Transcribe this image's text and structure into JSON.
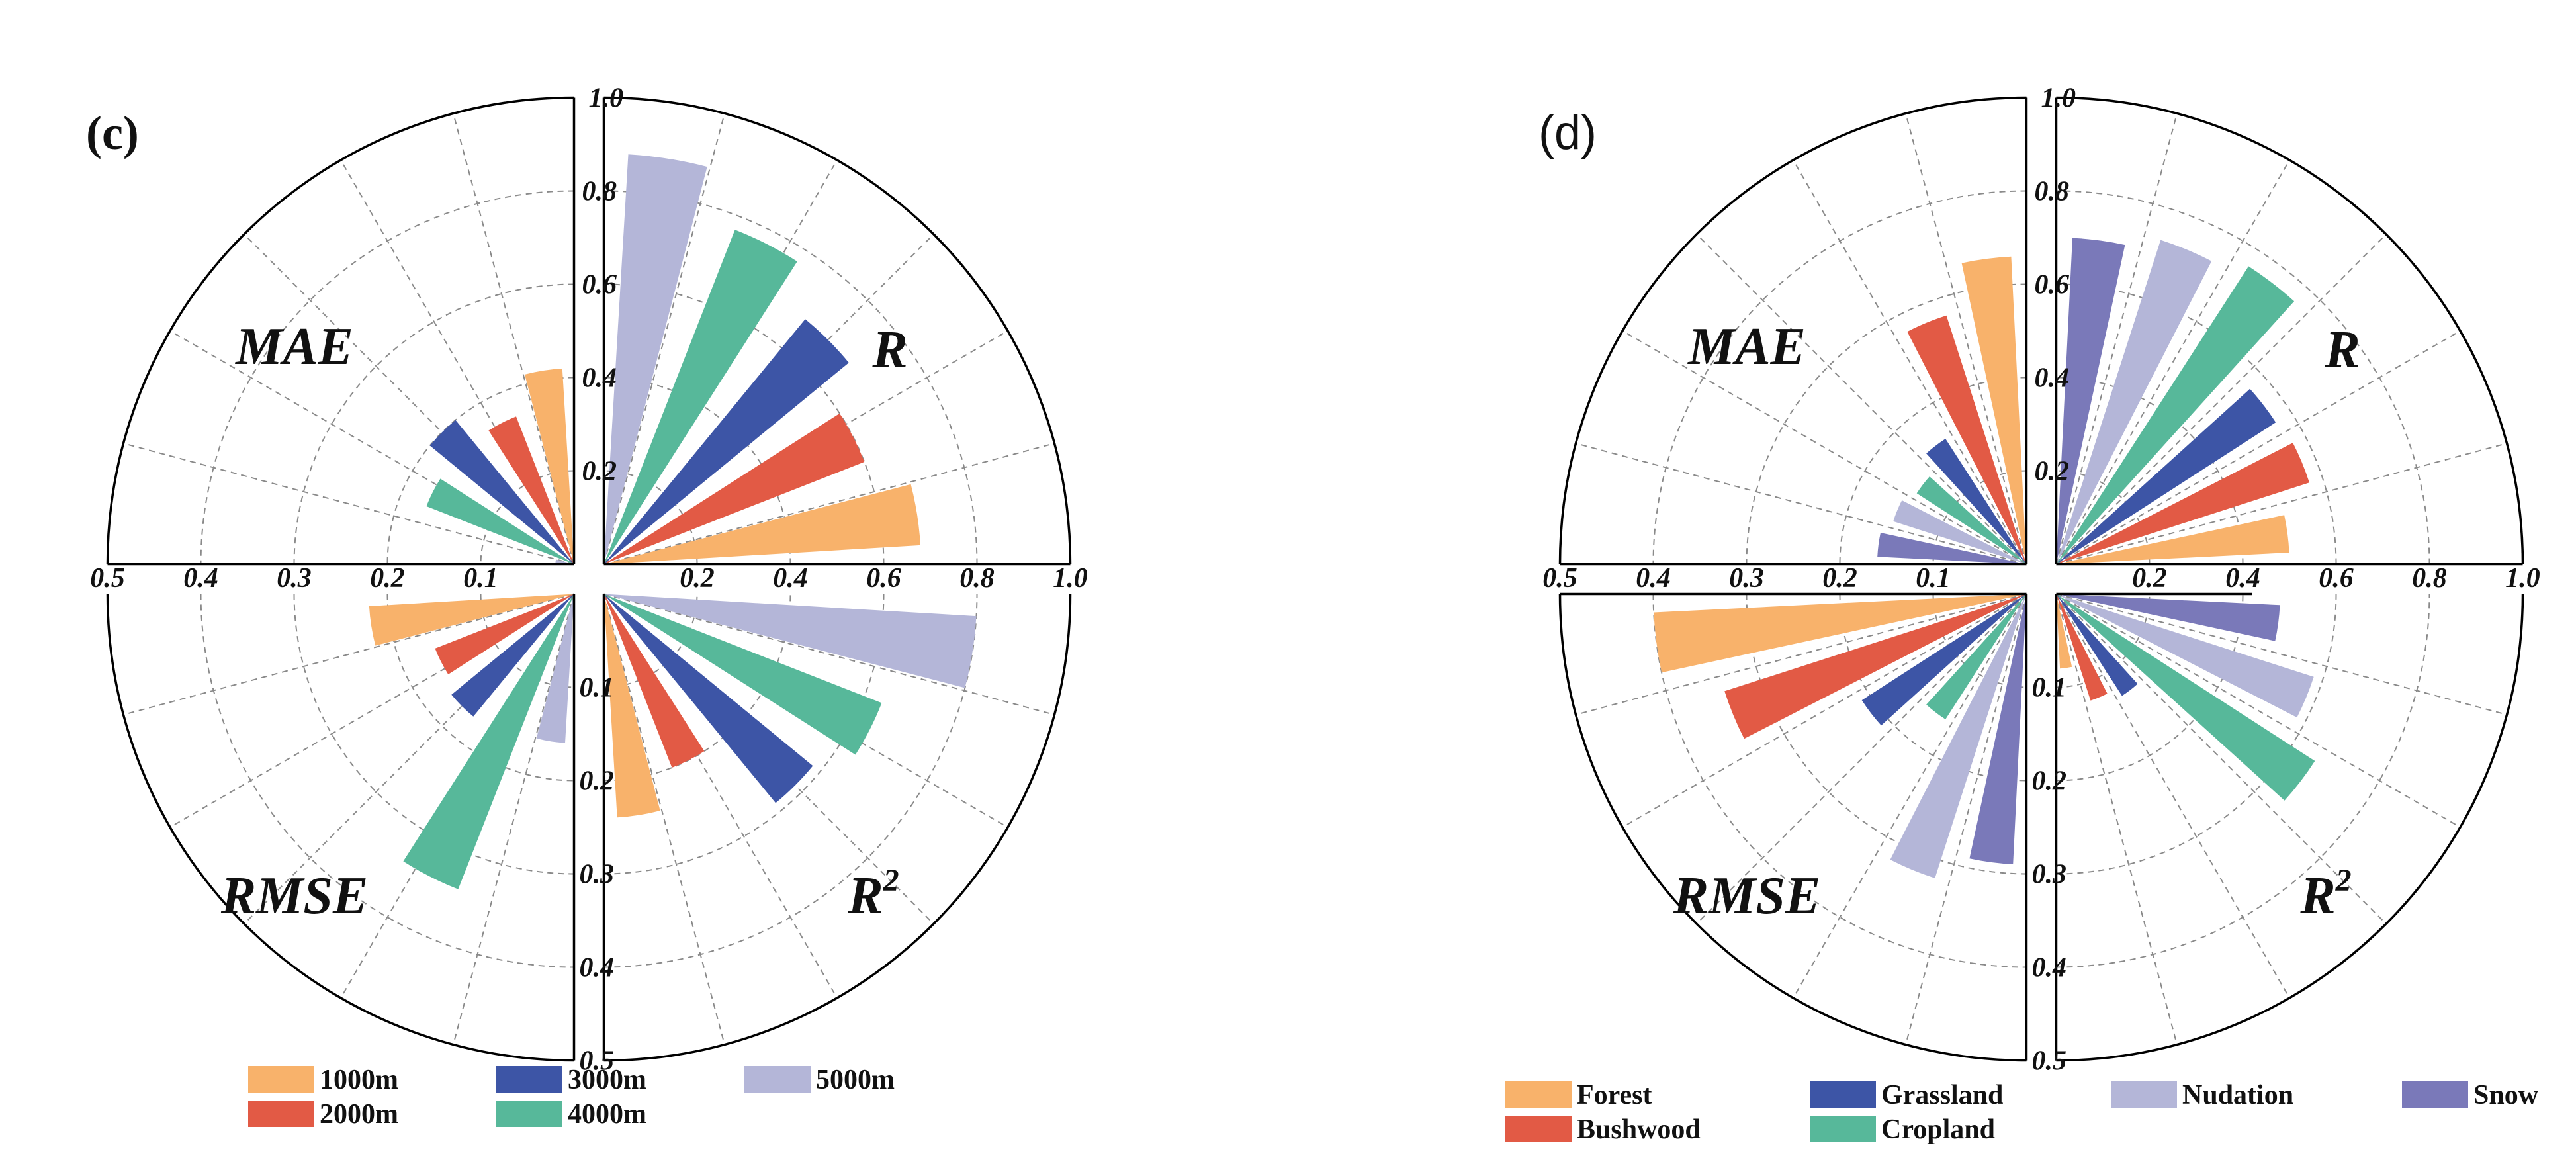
{
  "colors": {
    "orange": "#F8B26B",
    "red": "#E25A45",
    "blue": "#3D55A6",
    "green": "#57B89A",
    "lavender": "#B4B6D8",
    "purple": "#7A79B9"
  },
  "chart_data": [
    {
      "type": "polar-bar",
      "panel_label": "(c)",
      "series_names": [
        "1000m",
        "2000m",
        "3000m",
        "4000m",
        "5000m"
      ],
      "series_colors": [
        "orange",
        "red",
        "blue",
        "green",
        "lavender"
      ],
      "legend_order": [
        0,
        2,
        4,
        1,
        3
      ],
      "quadrants": [
        {
          "id": "R",
          "label": "R",
          "range": [
            0,
            1.0
          ],
          "ticks": [
            "0.2",
            "0.4",
            "0.6",
            "0.8",
            "1.0"
          ],
          "tick_axis": "vertical",
          "values": [
            0.68,
            0.6,
            0.68,
            0.77,
            0.88
          ]
        },
        {
          "id": "MAE",
          "label": "MAE",
          "range": [
            0,
            0.5
          ],
          "ticks": [
            "0.5",
            "0.4",
            "0.3",
            "0.2",
            "0.1"
          ],
          "tick_axis": "horizontal",
          "values": [
            0.21,
            0.17,
            0.2,
            0.17,
            0.02
          ]
        },
        {
          "id": "RMSE",
          "label": "RMSE",
          "range": [
            0,
            0.5
          ],
          "ticks": [],
          "tick_axis": "none",
          "values": [
            0.22,
            0.16,
            0.17,
            0.34,
            0.16
          ]
        },
        {
          "id": "R2",
          "label": "R",
          "label_sup": "2",
          "range": [
            0,
            0.5
          ],
          "ticks": [
            "0.2",
            "0.4",
            "0.6",
            "0.8",
            "1.0",
            "0.1",
            "0.2",
            "0.3",
            "0.4",
            "0.5"
          ],
          "tick_axis": "both",
          "values": [
            0.24,
            0.2,
            0.29,
            0.32,
            0.4
          ]
        }
      ]
    },
    {
      "type": "polar-bar",
      "panel_label": "(d)",
      "series_names": [
        "Forest",
        "Bushwood",
        "Grassland",
        "Cropland",
        "Nudation",
        "Snow"
      ],
      "series_colors": [
        "orange",
        "red",
        "blue",
        "green",
        "lavender",
        "purple"
      ],
      "legend_order": [
        0,
        2,
        4,
        5,
        1,
        3
      ],
      "quadrants": [
        {
          "id": "R",
          "label": "R",
          "range": [
            0,
            1.0
          ],
          "ticks": [
            "0.2",
            "0.4",
            "0.6",
            "0.8",
            "1.0"
          ],
          "tick_axis": "vertical",
          "values": [
            0.5,
            0.57,
            0.56,
            0.76,
            0.73,
            0.7
          ]
        },
        {
          "id": "MAE",
          "label": "MAE",
          "range": [
            0,
            0.5
          ],
          "ticks": [
            "0.5",
            "0.4",
            "0.3",
            "0.2",
            "0.1"
          ],
          "tick_axis": "horizontal",
          "values": [
            0.33,
            0.28,
            0.16,
            0.14,
            0.15,
            0.16
          ]
        },
        {
          "id": "RMSE",
          "label": "RMSE",
          "range": [
            0,
            0.5
          ],
          "ticks": [],
          "tick_axis": "none",
          "values": [
            0.4,
            0.34,
            0.21,
            0.16,
            0.32,
            0.29
          ]
        },
        {
          "id": "R2",
          "label": "R",
          "label_sup": "2",
          "range": [
            0,
            0.5
          ],
          "ticks": [
            "0.2",
            "0.4",
            "0.6",
            "0.8",
            "1.0",
            "0.1",
            "0.2",
            "0.3",
            "0.4",
            "0.5"
          ],
          "tick_axis": "both",
          "values": [
            0.08,
            0.12,
            0.13,
            0.33,
            0.29,
            0.24
          ]
        }
      ]
    }
  ]
}
